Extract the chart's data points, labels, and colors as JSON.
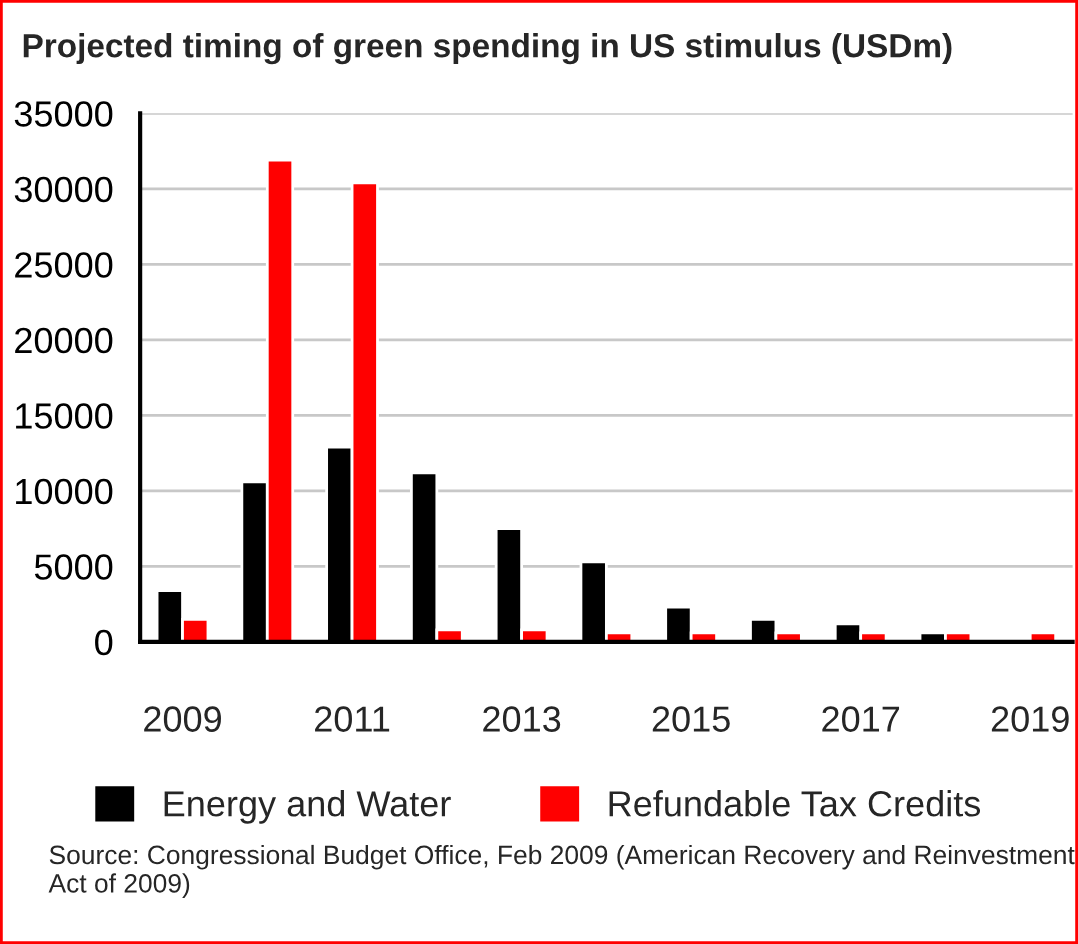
{
  "chart_data": {
    "type": "bar",
    "title": "Projected timing of green spending in US stimulus (USDm)",
    "categories": [
      "2009",
      null,
      "2011",
      null,
      "2013",
      null,
      "2015",
      null,
      "2017",
      null,
      "2019"
    ],
    "series": [
      {
        "name": "Energy and Water",
        "color": "#000000",
        "values": [
          3400,
          10600,
          12900,
          11200,
          7500,
          5300,
          2300,
          1500,
          1200,
          600,
          null
        ]
      },
      {
        "name": "Refundable Tax Credits",
        "color": "#ff0000",
        "values": [
          1500,
          31900,
          30400,
          800,
          800,
          600,
          600,
          600,
          600,
          600,
          600
        ]
      }
    ],
    "ylim": [
      0,
      35000
    ],
    "yticks": [
      0,
      5000,
      10000,
      15000,
      20000,
      25000,
      30000,
      35000
    ],
    "grid": "y",
    "legend": "bottom",
    "annotations": [
      "Source: Congressional Budget Office, Feb 2009 (American Recovery and Reinvestment Act of 2009)"
    ]
  }
}
